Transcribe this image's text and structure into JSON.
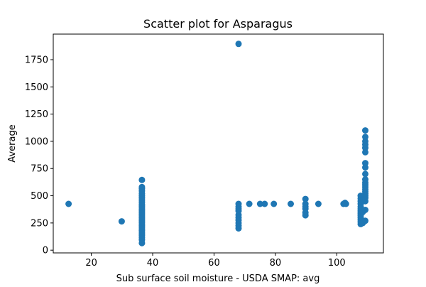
{
  "chart_data": {
    "type": "scatter",
    "title": "Scatter plot for Asparagus",
    "xlabel": "Sub surface soil moisture - USDA SMAP: avg",
    "ylabel": "Average",
    "xlim": [
      7.6,
      115.2
    ],
    "ylim": [
      -25,
      1985
    ],
    "xticks": [
      20,
      40,
      60,
      80,
      100
    ],
    "yticks": [
      0,
      250,
      500,
      750,
      1000,
      1250,
      1500,
      1750
    ],
    "grid": false,
    "marker_color": "#1f77b4",
    "series": [
      {
        "points": [
          [
            12.6,
            425
          ],
          [
            29.9,
            265
          ],
          [
            36.5,
            65
          ],
          [
            36.5,
            95
          ],
          [
            36.5,
            115
          ],
          [
            36.5,
            135
          ],
          [
            36.5,
            150
          ],
          [
            36.5,
            165
          ],
          [
            36.5,
            180
          ],
          [
            36.5,
            195
          ],
          [
            36.5,
            210
          ],
          [
            36.5,
            225
          ],
          [
            36.5,
            240
          ],
          [
            36.5,
            255
          ],
          [
            36.5,
            270
          ],
          [
            36.5,
            285
          ],
          [
            36.5,
            300
          ],
          [
            36.5,
            315
          ],
          [
            36.5,
            330
          ],
          [
            36.5,
            345
          ],
          [
            36.5,
            360
          ],
          [
            36.5,
            375
          ],
          [
            36.5,
            390
          ],
          [
            36.5,
            405
          ],
          [
            36.5,
            420
          ],
          [
            36.5,
            440
          ],
          [
            36.5,
            460
          ],
          [
            36.5,
            480
          ],
          [
            36.5,
            500
          ],
          [
            36.5,
            520
          ],
          [
            36.5,
            545
          ],
          [
            36.5,
            565
          ],
          [
            36.5,
            580
          ],
          [
            36.5,
            645
          ],
          [
            68.0,
            200
          ],
          [
            68.0,
            225
          ],
          [
            68.0,
            250
          ],
          [
            68.0,
            275
          ],
          [
            68.0,
            300
          ],
          [
            68.0,
            325
          ],
          [
            68.0,
            360
          ],
          [
            68.0,
            380
          ],
          [
            68.0,
            400
          ],
          [
            68.0,
            425
          ],
          [
            68.0,
            1895
          ],
          [
            71.5,
            425
          ],
          [
            75.0,
            425
          ],
          [
            76.5,
            425
          ],
          [
            79.5,
            425
          ],
          [
            85.0,
            425
          ],
          [
            89.8,
            320
          ],
          [
            89.8,
            345
          ],
          [
            89.8,
            380
          ],
          [
            89.8,
            400
          ],
          [
            89.8,
            425
          ],
          [
            89.8,
            470
          ],
          [
            94.0,
            425
          ],
          [
            102.2,
            425
          ],
          [
            102.7,
            435
          ],
          [
            103.0,
            425
          ],
          [
            107.8,
            240
          ],
          [
            107.8,
            260
          ],
          [
            107.8,
            280
          ],
          [
            107.8,
            300
          ],
          [
            107.8,
            320
          ],
          [
            107.8,
            340
          ],
          [
            107.8,
            360
          ],
          [
            107.8,
            380
          ],
          [
            107.8,
            400
          ],
          [
            107.8,
            425
          ],
          [
            107.8,
            450
          ],
          [
            107.8,
            475
          ],
          [
            107.8,
            500
          ],
          [
            108.5,
            250
          ],
          [
            108.5,
            350
          ],
          [
            108.5,
            450
          ],
          [
            109.3,
            270
          ],
          [
            109.3,
            370
          ],
          [
            109.3,
            450
          ],
          [
            109.3,
            480
          ],
          [
            109.3,
            500
          ],
          [
            109.3,
            520
          ],
          [
            109.3,
            540
          ],
          [
            109.3,
            560
          ],
          [
            109.3,
            580
          ],
          [
            109.3,
            600
          ],
          [
            109.3,
            620
          ],
          [
            109.3,
            650
          ],
          [
            109.3,
            700
          ],
          [
            109.3,
            760
          ],
          [
            109.3,
            800
          ],
          [
            109.3,
            900
          ],
          [
            109.3,
            940
          ],
          [
            109.3,
            970
          ],
          [
            109.3,
            1000
          ],
          [
            109.3,
            1040
          ],
          [
            109.3,
            1100
          ]
        ]
      }
    ]
  }
}
